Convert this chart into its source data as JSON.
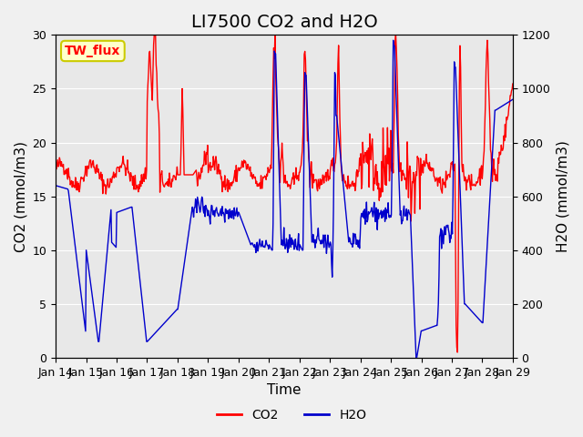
{
  "title": "LI7500 CO2 and H2O",
  "xlabel": "Time",
  "ylabel_left": "CO2 (mmol/m3)",
  "ylabel_right": "H2O (mmol/m3)",
  "ylim_left": [
    0,
    30
  ],
  "ylim_right": [
    0,
    1200
  ],
  "yticks_left": [
    0,
    5,
    10,
    15,
    20,
    25,
    30
  ],
  "yticks_right": [
    0,
    200,
    400,
    600,
    800,
    1000,
    1200
  ],
  "date_labels": [
    "Jan 14",
    "Jan 15",
    "Jan 16",
    "Jan 17",
    "Jan 18",
    "Jan 19",
    "Jan 20",
    "Jan 21",
    "Jan 22",
    "Jan 23",
    "Jan 24",
    "Jan 25",
    "Jan 26",
    "Jan 27",
    "Jan 28",
    "Jan 29"
  ],
  "co2_color": "#ff0000",
  "h2o_color": "#0000cc",
  "legend_labels": [
    "CO2",
    "H2O"
  ],
  "site_label": "TW_flux",
  "background_color": "#e8e8e8",
  "title_fontsize": 14,
  "axis_fontsize": 11,
  "tick_fontsize": 9,
  "legend_fontsize": 10
}
